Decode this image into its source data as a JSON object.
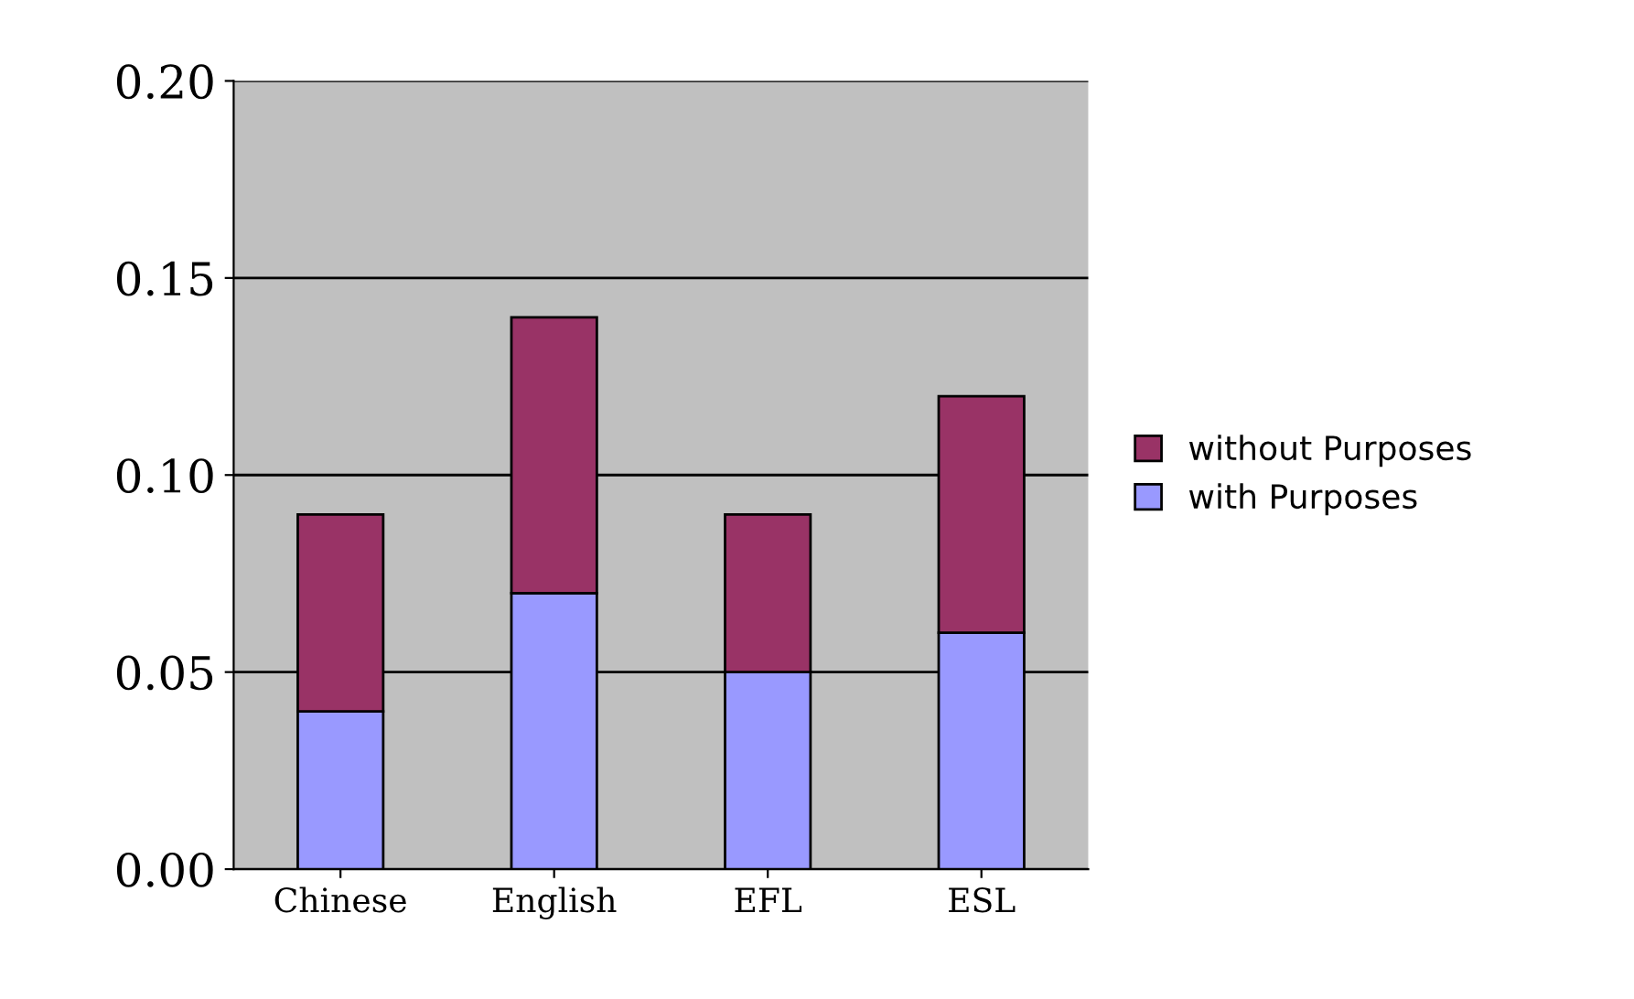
{
  "chart_data": {
    "type": "bar",
    "stacked": true,
    "categories": [
      "Chinese",
      "English",
      "EFL",
      "ESL"
    ],
    "series": [
      {
        "name": "with Purposes",
        "color": "#9999ff",
        "values": [
          0.04,
          0.07,
          0.05,
          0.06
        ]
      },
      {
        "name": "without Purposes",
        "color": "#993366",
        "values": [
          0.05,
          0.07,
          0.04,
          0.06
        ]
      }
    ],
    "ylim": [
      0,
      0.2
    ],
    "yticks": [
      {
        "value": 0,
        "label": "0.00"
      },
      {
        "value": 0.05,
        "label": "0.05"
      },
      {
        "value": 0.1,
        "label": "0.10"
      },
      {
        "value": 0.15,
        "label": "0.15"
      },
      {
        "value": 0.2,
        "label": "0.20"
      }
    ],
    "grid": "y",
    "legend": "right"
  }
}
